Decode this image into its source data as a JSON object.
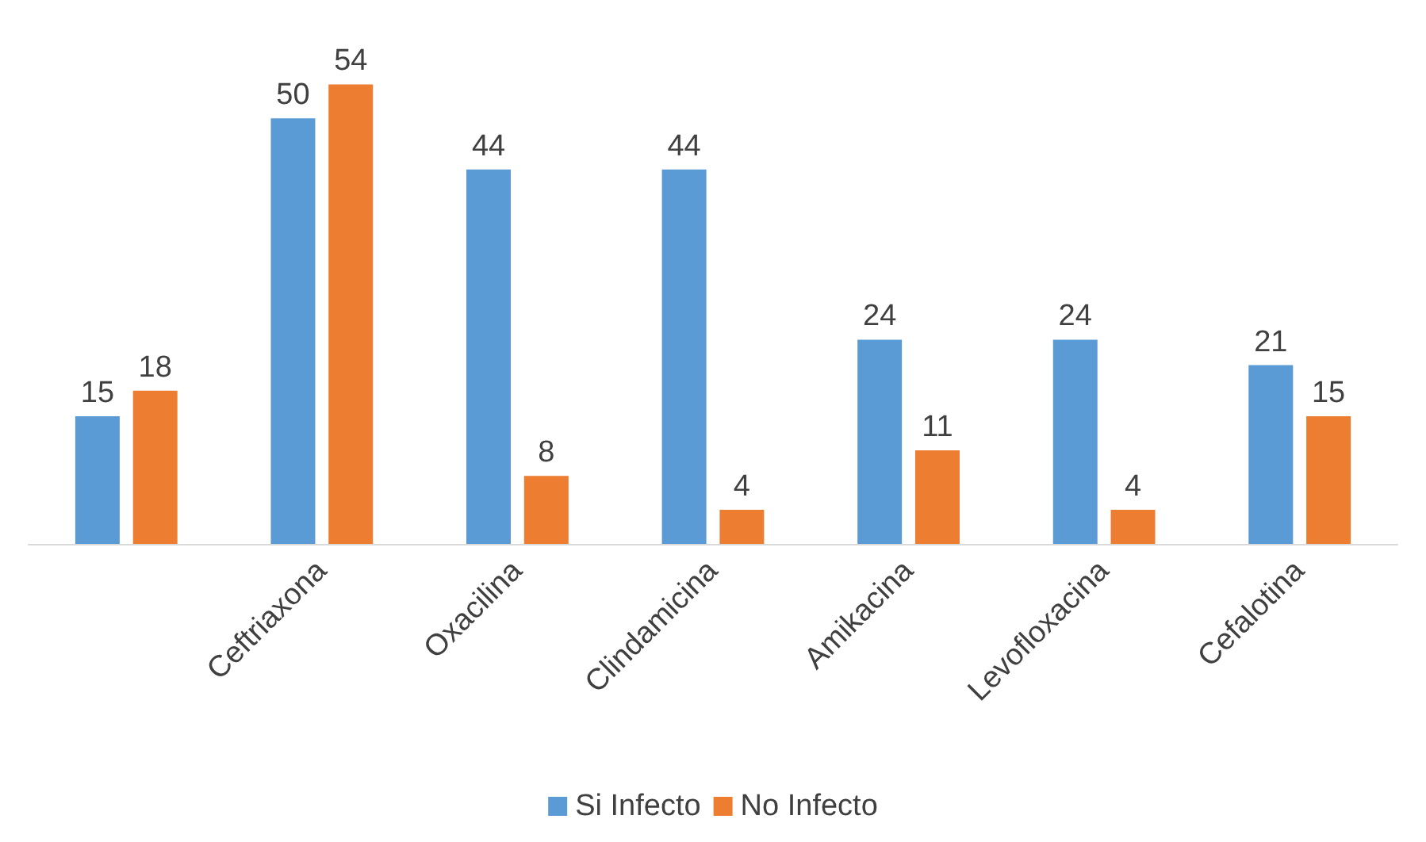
{
  "chart_data": {
    "type": "bar",
    "categories": [
      null,
      "Ceftriaxona",
      "Oxacilina",
      "Clindamicina",
      "Amikacina",
      "Levofloxacina",
      "Cefalotina"
    ],
    "series": [
      {
        "name": "Si Infecto",
        "color": "#5b9bd5",
        "values": [
          15,
          50,
          44,
          44,
          24,
          24,
          21
        ]
      },
      {
        "name": "No Infecto",
        "color": "#ed7d31",
        "values": [
          18,
          54,
          8,
          4,
          11,
          4,
          15
        ]
      }
    ],
    "data_labels": true,
    "legend": "bottom",
    "grid": false
  }
}
